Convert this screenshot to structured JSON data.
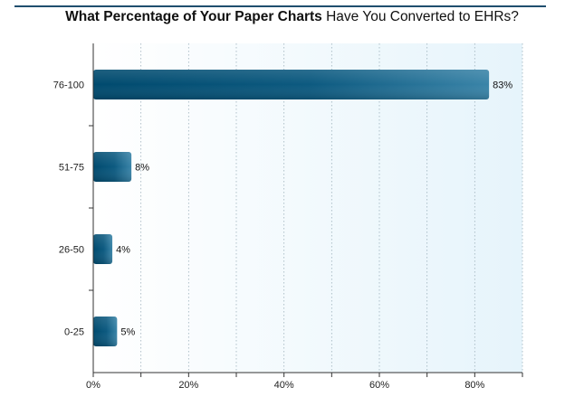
{
  "title_bold": "What Percentage of Your Paper Charts",
  "title_rest": " Have You Converted to EHRs?",
  "colors": {
    "bar_dark": "#004a6e",
    "bar_light": "#3a84a8",
    "plot_bg": "#eaf6fb",
    "rule": "#1f4e6e"
  },
  "chart_data": {
    "type": "bar",
    "orientation": "horizontal",
    "title": "What Percentage of Your Paper Charts Have You Converted to EHRs?",
    "categories": [
      "76-100",
      "51-75",
      "26-50",
      "0-25"
    ],
    "values": [
      83,
      8,
      4,
      5
    ],
    "value_labels": [
      "83%",
      "8%",
      "4%",
      "5%"
    ],
    "xlim": [
      0,
      90
    ],
    "xticks": [
      0,
      20,
      40,
      60,
      80
    ],
    "xtick_labels": [
      "0%",
      "20%",
      "40%",
      "60%",
      "80%"
    ],
    "grid": "vertical-dotted",
    "legend": "none"
  }
}
